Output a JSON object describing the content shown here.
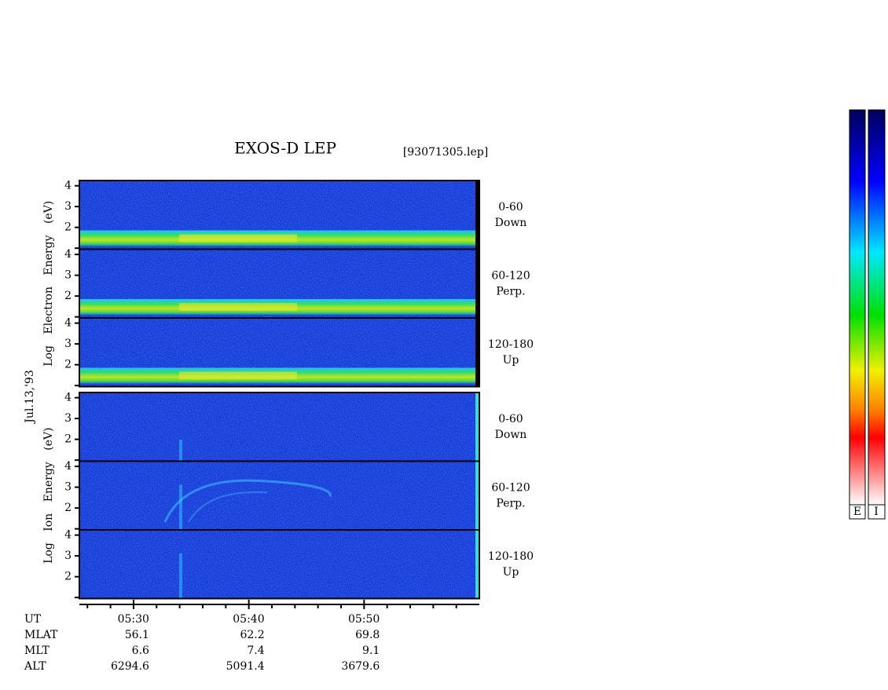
{
  "title": "EXOS-D LEP",
  "file": "[93071305.lep]",
  "date": "Jul.13,'93",
  "chart_data": {
    "type": "spectrogram",
    "xlim": [
      25.3,
      60
    ],
    "xticks": [
      {
        "value": 30,
        "label": "05:30"
      },
      {
        "value": 40,
        "label": "05:40"
      },
      {
        "value": 50,
        "label": "05:50"
      }
    ],
    "x_minor_ticks": [
      26,
      28,
      32,
      34,
      36,
      38,
      42,
      44,
      46,
      48,
      52,
      54,
      56,
      58
    ],
    "groups": [
      {
        "label": "Log Electron Energy (eV)",
        "panels": [
          {
            "lines": [
              "0-60",
              "Down"
            ],
            "ylim": [
              0.95,
              4.25
            ],
            "yticks": [
              2,
              3,
              4
            ],
            "minor_yticks": [
              1
            ]
          },
          {
            "lines": [
              "60-120",
              "Perp."
            ],
            "ylim": [
              0.95,
              4.25
            ],
            "yticks": [
              2,
              3,
              4
            ],
            "minor_yticks": [
              1
            ]
          },
          {
            "lines": [
              "120-180",
              "Up"
            ],
            "ylim": [
              0.95,
              4.25
            ],
            "yticks": [
              2,
              3,
              4
            ],
            "minor_yticks": [
              1
            ]
          }
        ]
      },
      {
        "label": "Log Ion Energy (eV)",
        "panels": [
          {
            "lines": [
              "0-60",
              "Down"
            ],
            "ylim": [
              0.95,
              4.25
            ],
            "yticks": [
              2,
              3,
              4
            ],
            "minor_yticks": [
              1
            ]
          },
          {
            "lines": [
              "60-120",
              "Perp."
            ],
            "ylim": [
              0.95,
              4.25
            ],
            "yticks": [
              2,
              3,
              4
            ],
            "minor_yticks": [
              1
            ]
          },
          {
            "lines": [
              "120-180",
              "Up"
            ],
            "ylim": [
              0.95,
              4.25
            ],
            "yticks": [
              2,
              3,
              4
            ],
            "minor_yticks": [
              1
            ]
          }
        ]
      }
    ]
  },
  "orbit": {
    "row_labels": [
      "UT",
      "MLAT",
      "MLT",
      "ALT"
    ],
    "rows": [
      [
        "56.1",
        "62.2",
        "69.8"
      ],
      [
        "6.6",
        "7.4",
        "9.1"
      ],
      [
        "6294.6",
        "5091.4",
        "3679.6"
      ]
    ]
  },
  "colorbar": {
    "labels": [
      "E",
      "I"
    ]
  }
}
